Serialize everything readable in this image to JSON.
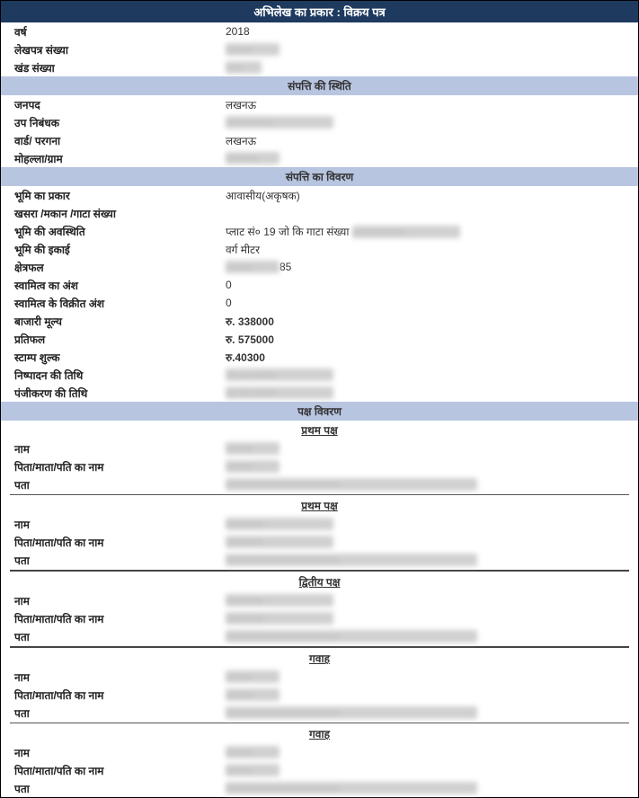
{
  "title": "अभिलेख का प्रकार : विक्रय पत्र",
  "basic": {
    "year_label": "वर्ष",
    "year": "2018",
    "doc_no_label": "लेखपत्र संख्या",
    "vol_no_label": "खंड संख्या"
  },
  "location_header": "संपत्ति की स्थिति",
  "location": {
    "district_label": "जनपद",
    "district": "लखनऊ",
    "sub_reg_label": "उप निबंधक",
    "ward_label": "वार्ड/ परगना",
    "ward": "लखनऊ",
    "mohalla_label": "मोहल्ला/ग्राम"
  },
  "desc_header": "संपत्ति का विवरण",
  "desc": {
    "land_type_label": "भूमि का प्रकार",
    "land_type": "आवासीय(अकृषक)",
    "khasra_label": "खसरा /मकान /गाटा संख्या",
    "location_label": "भूमि की अवस्थिति",
    "location_val": "प्लाट सं० 19 जो कि गाटा संख्या ",
    "unit_label": "भूमि की इकाई",
    "unit_val": "वर्ग मीटर",
    "area_label": "क्षेत्रफल",
    "area_suffix": "85",
    "ownership_share_label": "स्वामित्व का अंश",
    "ownership_share": "0",
    "sold_share_label": "स्वामित्व के विक्रीत अंश",
    "sold_share": "0",
    "market_value_label": "बाजारी मूल्य",
    "market_value": "रु. 338000",
    "consideration_label": "प्रतिफल",
    "consideration": "रु. 575000",
    "stamp_label": "स्टाम्प शुल्क",
    "stamp": "रु.40300",
    "exec_date_label": "निष्पादन की तिथि",
    "reg_date_label": "पंजीकरण की तिथि"
  },
  "party_header": "पक्ष विवरण",
  "first_party": "प्रथम पक्ष",
  "second_party": "द्वितीय पक्ष",
  "witness": "गवाह",
  "fields": {
    "name": "नाम",
    "relation": "पिता/माता/पति का नाम",
    "address": "पता"
  }
}
